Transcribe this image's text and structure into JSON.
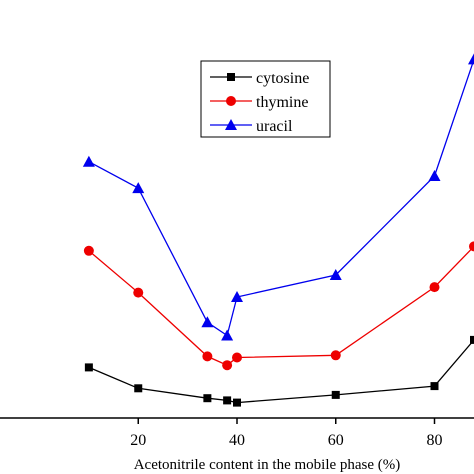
{
  "chart_data": {
    "type": "line",
    "title": "",
    "xlabel": "Acetonitrile content in the mobile phase (%)",
    "ylabel": "",
    "xlim": [
      0,
      88
    ],
    "ylim": [
      0,
      19
    ],
    "xticks": [
      20,
      40,
      60,
      80
    ],
    "grid": false,
    "legend_position": "top-center",
    "series": [
      {
        "name": "cytosine",
        "color": "#000000",
        "marker": "square",
        "x": [
          10,
          20,
          34,
          38,
          40,
          60,
          80,
          88
        ],
        "y": [
          2.3,
          1.35,
          0.9,
          0.8,
          0.7,
          1.05,
          1.45,
          3.55
        ]
      },
      {
        "name": "thymine",
        "color": "#ee0000",
        "marker": "circle",
        "x": [
          10,
          20,
          34,
          38,
          40,
          60,
          80,
          88
        ],
        "y": [
          7.6,
          5.7,
          2.8,
          2.4,
          2.75,
          2.85,
          5.95,
          7.8
        ]
      },
      {
        "name": "uracil",
        "color": "#0000ee",
        "marker": "triangle",
        "x": [
          10,
          20,
          34,
          38,
          40,
          60,
          80,
          88
        ],
        "y": [
          11.65,
          10.45,
          4.35,
          3.75,
          5.5,
          6.5,
          11.0,
          16.3
        ]
      }
    ]
  }
}
